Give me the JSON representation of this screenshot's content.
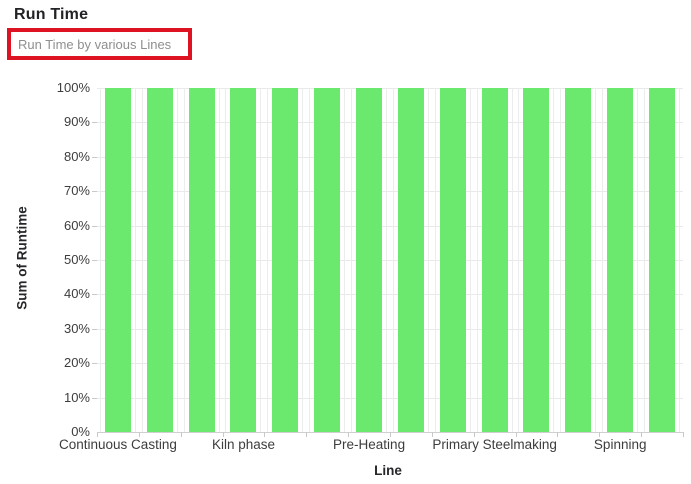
{
  "header": {
    "title": "Run Time",
    "subtitle": "Run Time by various Lines"
  },
  "annotation": {
    "type": "highlight-rectangle",
    "color": "#DD1222"
  },
  "chart": {
    "y_axis_title": "Sum of Runtime",
    "x_axis_title": "Line",
    "y_ticks": [
      "100%",
      "90%",
      "80%",
      "70%",
      "60%",
      "50%",
      "40%",
      "30%",
      "20%",
      "10%",
      "0%"
    ],
    "bar_color": "#6AE96E",
    "gridline_color": "#e9e9e9"
  },
  "chart_data": {
    "type": "bar",
    "title": "Run Time",
    "subtitle": "Run Time by various Lines",
    "xlabel": "Line",
    "ylabel": "Sum of Runtime",
    "ylim": [
      0,
      100
    ],
    "y_unit": "%",
    "y_tick_step": 10,
    "bar_count": 14,
    "values_pct": [
      100,
      100,
      100,
      100,
      100,
      100,
      100,
      100,
      100,
      100,
      100,
      100,
      100,
      100
    ],
    "labeled_categories": [
      "Continuous Casting",
      "Kiln phase",
      "Pre-Heating",
      "Primary Steelmaking",
      "Spinning"
    ],
    "labeled_bar_indices": [
      0,
      3,
      6,
      9,
      12
    ],
    "grid": true,
    "legend": "none",
    "bar_color": "#6AE96E"
  }
}
